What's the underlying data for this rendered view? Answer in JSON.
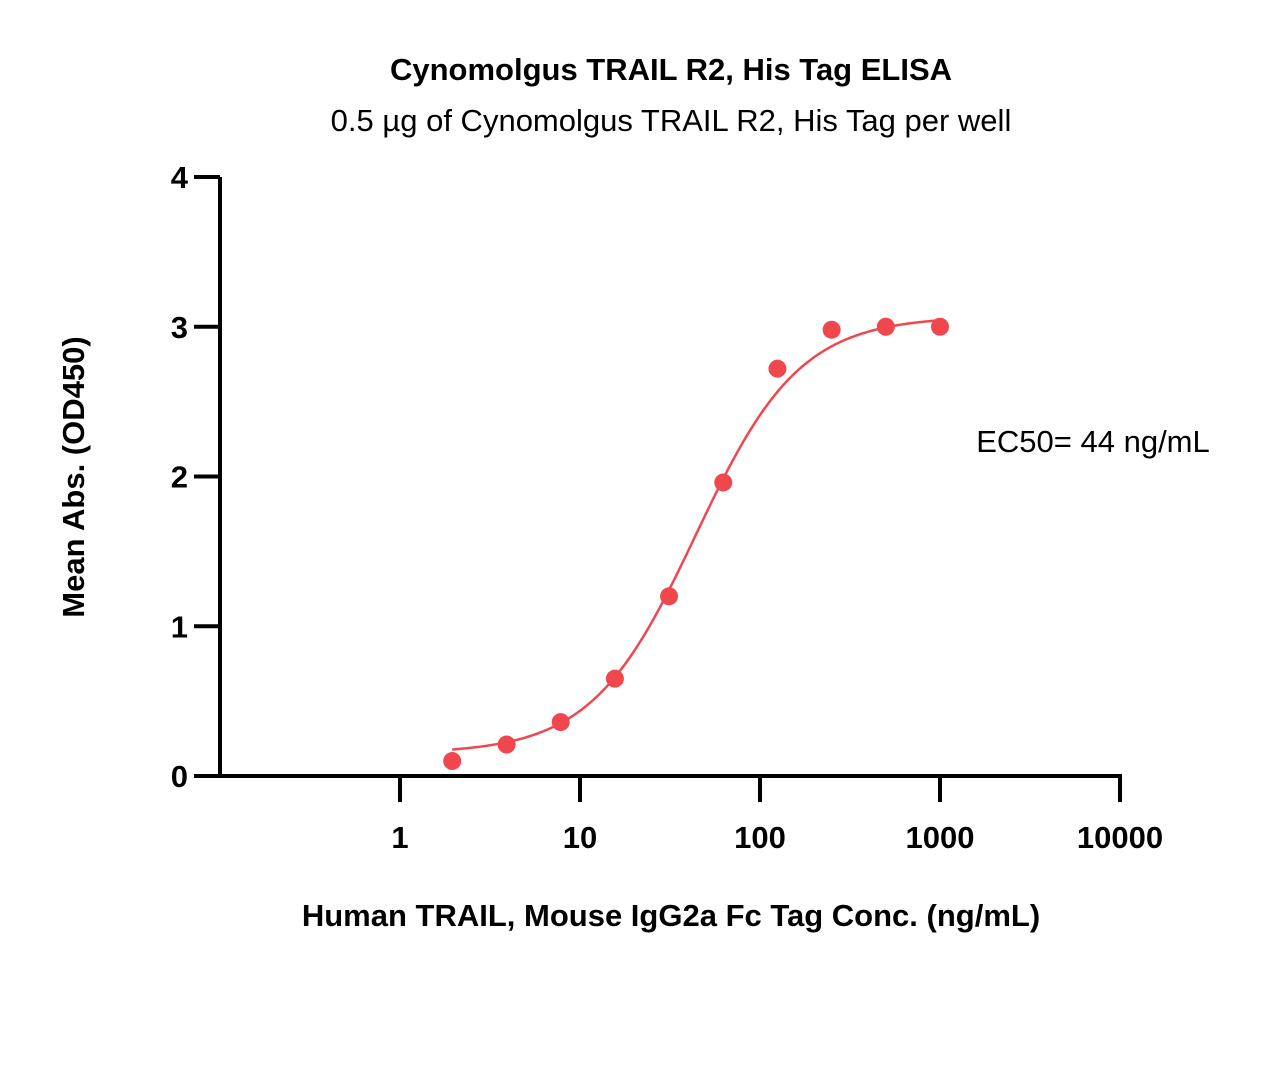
{
  "chart_data": {
    "type": "scatter",
    "title": "Cynomolgus TRAIL R2, His Tag ELISA",
    "subtitle": "0.5 µg of Cynomolgus TRAIL R2, His Tag per well",
    "xlabel": "Human TRAIL, Mouse IgG2a Fc Tag Conc. (ng/mL)",
    "ylabel": "Mean Abs. (OD450)",
    "x_scale": "log",
    "xlim": [
      0.1,
      10000
    ],
    "ylim": [
      0,
      4
    ],
    "x_ticks": [
      1,
      10,
      100,
      1000,
      10000
    ],
    "x_tick_labels": [
      "1",
      "10",
      "100",
      "1000",
      "10000"
    ],
    "y_ticks": [
      0,
      1,
      2,
      3,
      4
    ],
    "y_tick_labels": [
      "0",
      "1",
      "2",
      "3",
      "4"
    ],
    "grid": false,
    "annotation": "EC50= 44 ng/mL",
    "colors": {
      "series": "#f0474f",
      "axis": "#000000"
    },
    "series": [
      {
        "x": [
          1.95,
          3.91,
          7.81,
          15.63,
          31.25,
          62.5,
          125,
          250,
          500,
          1000
        ],
        "y": [
          0.1,
          0.21,
          0.36,
          0.65,
          1.2,
          1.96,
          2.72,
          2.98,
          3.0,
          3.0
        ]
      }
    ],
    "fit": {
      "model": "4PL",
      "bottom": 0.15,
      "top": 3.07,
      "ec50": 44,
      "hill": 1.5,
      "x_range": [
        1.95,
        1000
      ]
    }
  }
}
